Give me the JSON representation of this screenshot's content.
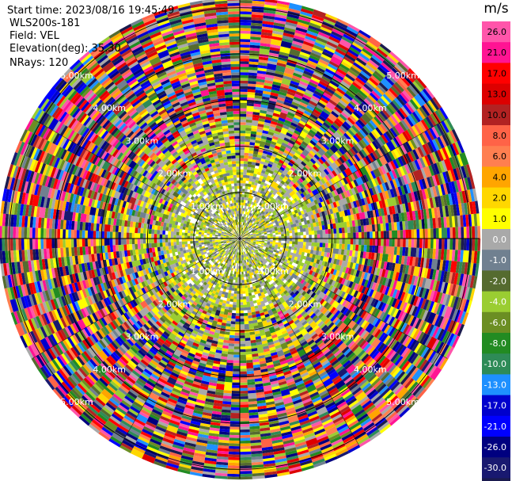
{
  "header": {
    "start_time": "Start time: 2023/08/16 19:45:49",
    "instrument": "WLS200s-181",
    "field": "Field: VEL",
    "elevation": "Elevation(deg): 35.30",
    "nrays": "NRays: 120"
  },
  "chart_data": {
    "type": "heatmap",
    "subtype": "polar-ppi",
    "field": "VEL",
    "units": "m/s",
    "n_rays": 120,
    "range_rings": [
      {
        "label": "1.00km",
        "value": 1.0
      },
      {
        "label": "2.00km",
        "value": 2.0
      },
      {
        "label": "3.00km",
        "value": 3.0
      },
      {
        "label": "4.00km",
        "value": 4.0
      },
      {
        "label": "5.00km",
        "value": 5.0
      }
    ],
    "max_range_km": 5.2,
    "colorbar": {
      "label": "m/s",
      "ticks": [
        "26.0",
        "21.0",
        "17.0",
        "13.0",
        "10.0",
        "8.0",
        "6.0",
        "4.0",
        "2.0",
        "1.0",
        "0.0",
        "-1.0",
        "-2.0",
        "-4.0",
        "-6.0",
        "-8.0",
        "-10.0",
        "-13.0",
        "-17.0",
        "-21.0",
        "-26.0",
        "-30.0"
      ],
      "colors": [
        "#ff55aa",
        "#ff1493",
        "#ff0000",
        "#dd0000",
        "#b22222",
        "#ff6347",
        "#ff7f50",
        "#ffa500",
        "#ffd700",
        "#ffff00",
        "#a9a9a9",
        "#708090",
        "#556b2f",
        "#9acd32",
        "#6b8e23",
        "#228b22",
        "#2e8b57",
        "#1e90ff",
        "#0000cd",
        "#0000ff",
        "#000080",
        "#191970",
        "#1a1a4e"
      ]
    }
  }
}
